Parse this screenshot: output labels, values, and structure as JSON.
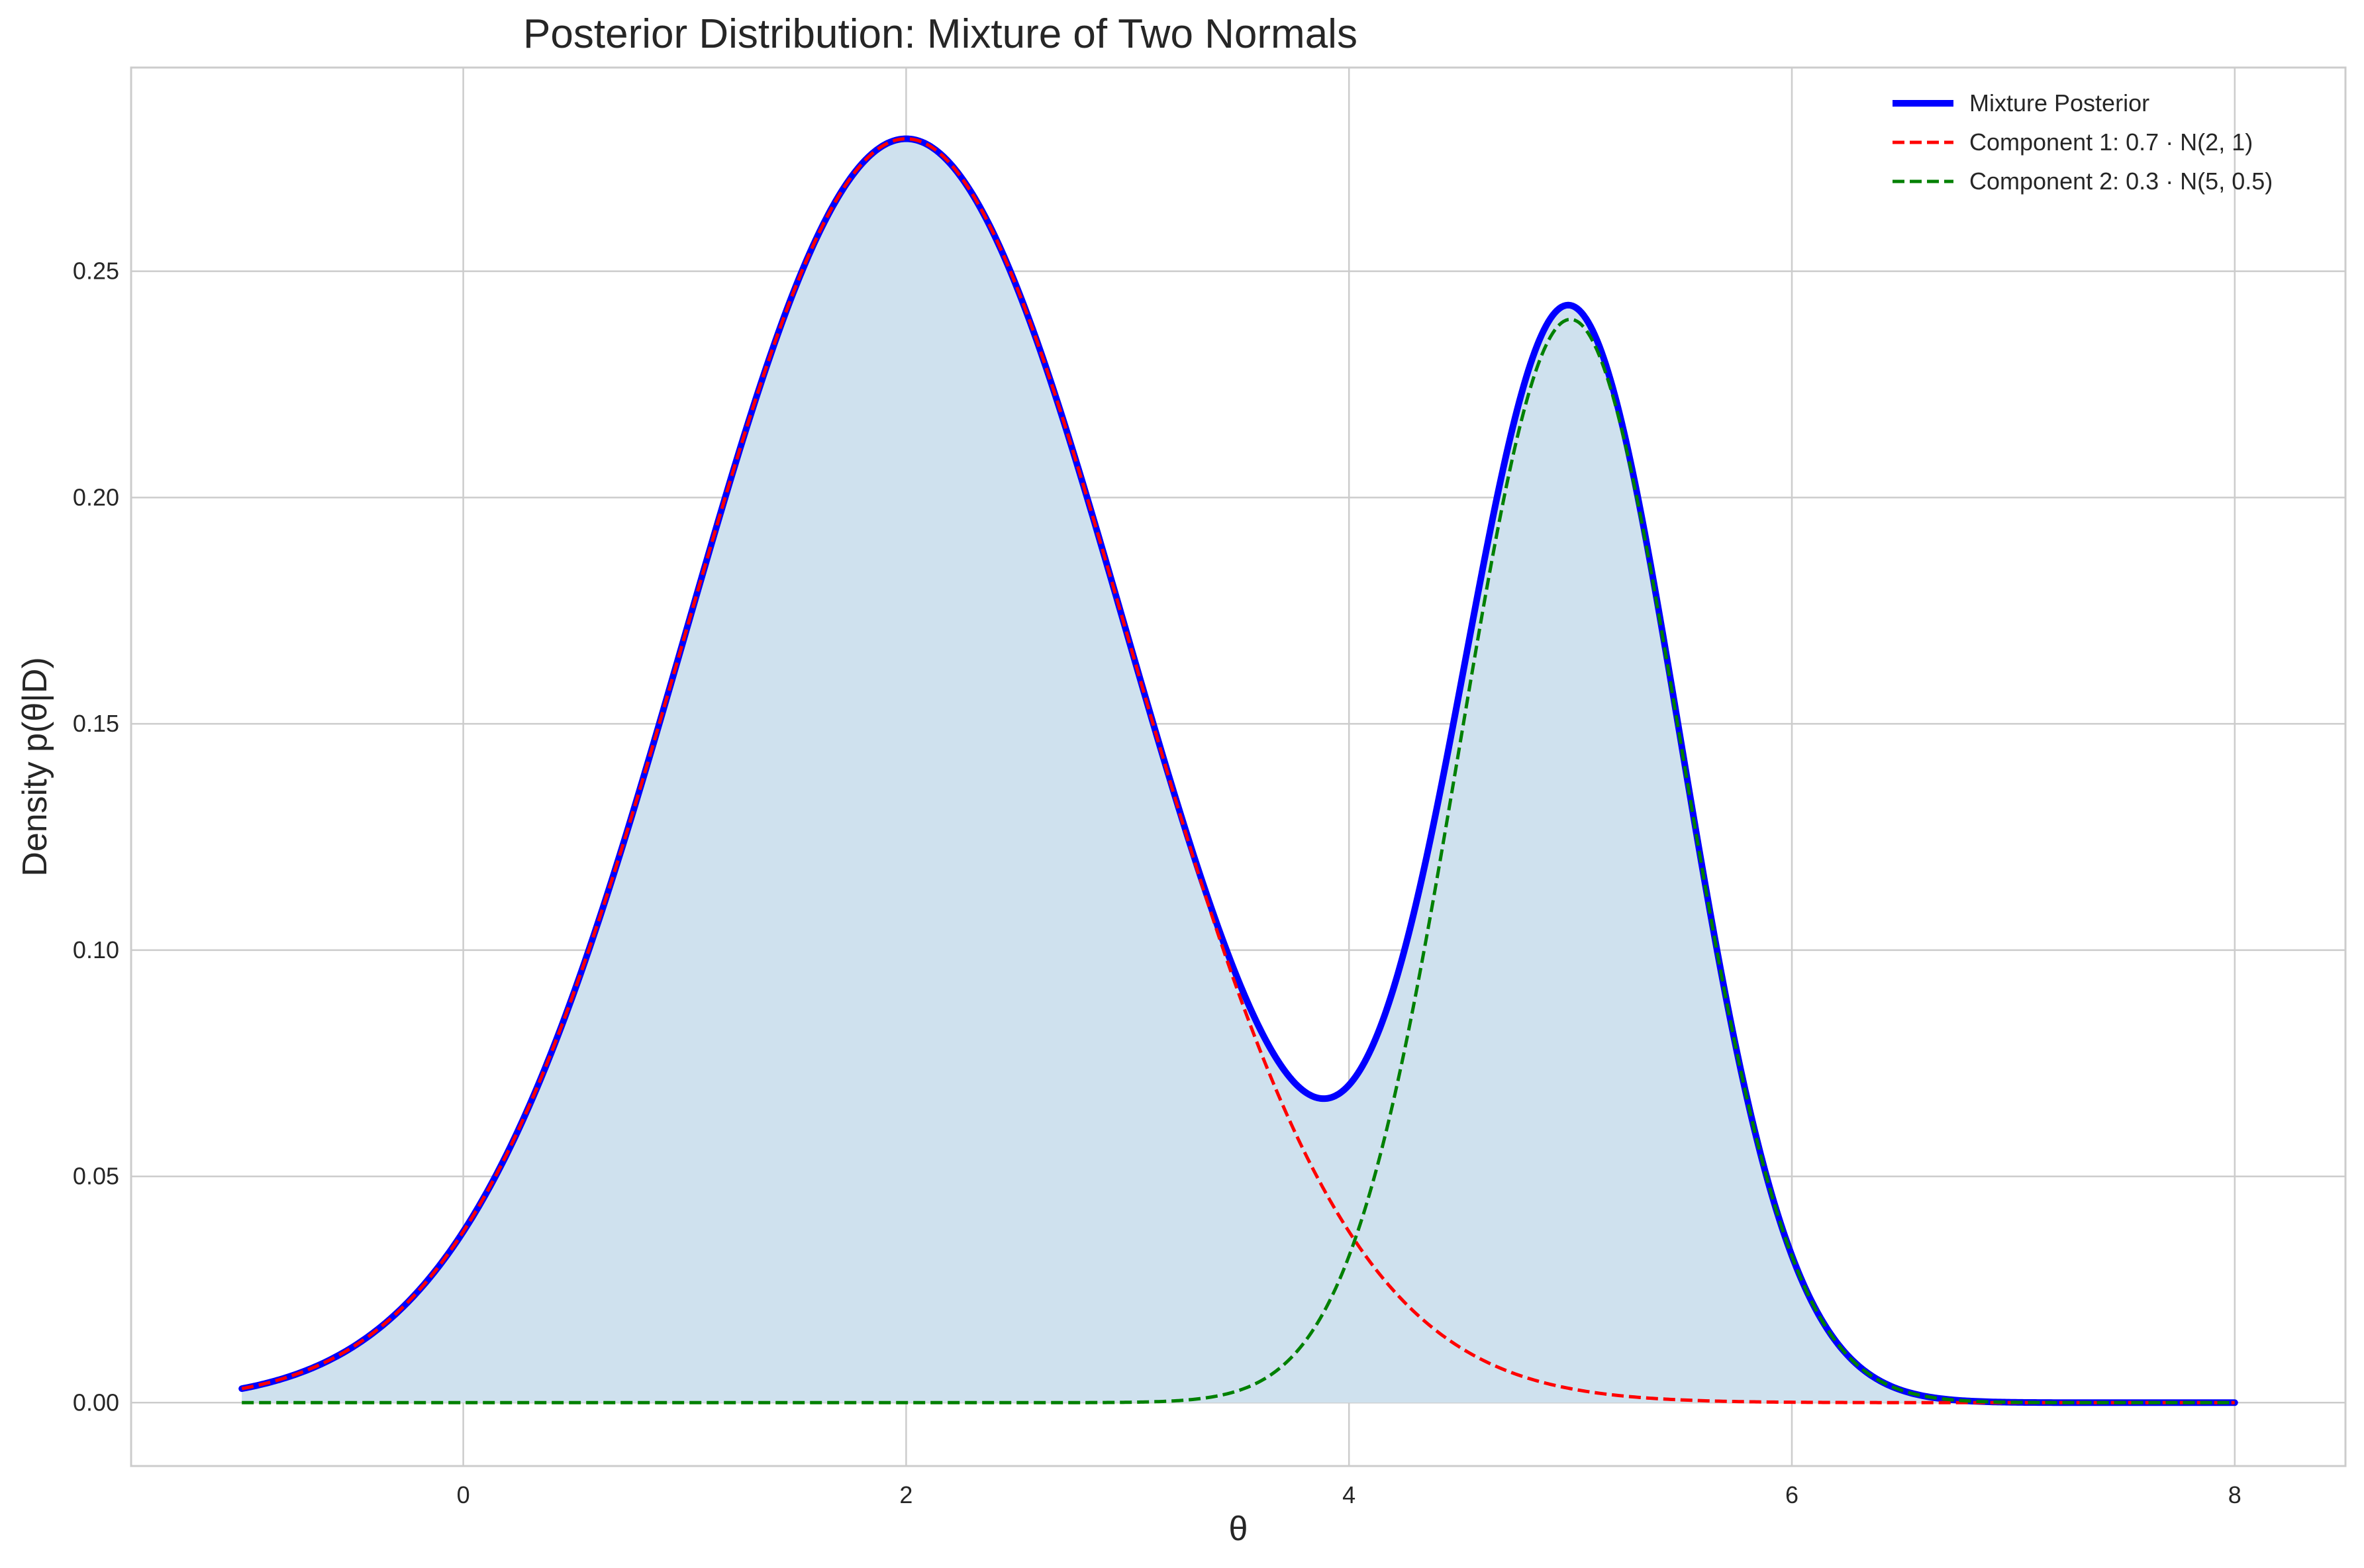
{
  "chart_data": {
    "type": "line",
    "title": "Posterior Distribution: Mixture of Two Normals",
    "xlabel": "θ",
    "ylabel": "Density p(θ|D)",
    "xlim": [
      -1.5,
      8.5
    ],
    "ylim": [
      -0.014,
      0.295
    ],
    "x_ticks": [
      0,
      2,
      4,
      6,
      8
    ],
    "x_tick_labels": [
      "0",
      "2",
      "4",
      "6",
      "8"
    ],
    "y_ticks": [
      0.0,
      0.05,
      0.1,
      0.15,
      0.2,
      0.25
    ],
    "y_tick_labels": [
      "0.00",
      "0.05",
      "0.10",
      "0.15",
      "0.20",
      "0.25"
    ],
    "grid": true,
    "legend_position": "top-right",
    "x_range": [
      -1,
      8
    ],
    "series": [
      {
        "name": "Mixture Posterior",
        "color": "#0000ff",
        "style": "solid",
        "components": [
          {
            "weight": 0.7,
            "mean": 2,
            "sd": 1
          },
          {
            "weight": 0.3,
            "mean": 5,
            "sd": 0.5
          }
        ],
        "fill": "#cfe1ee"
      },
      {
        "name": "Component 1: 0.7 · N(2, 1)",
        "color": "#ff0000",
        "style": "dashed",
        "components": [
          {
            "weight": 0.7,
            "mean": 2,
            "sd": 1
          }
        ]
      },
      {
        "name": "Component 2: 0.3 · N(5, 0.5)",
        "color": "#008000",
        "style": "dashed",
        "components": [
          {
            "weight": 0.3,
            "mean": 5,
            "sd": 0.5
          }
        ]
      }
    ]
  }
}
